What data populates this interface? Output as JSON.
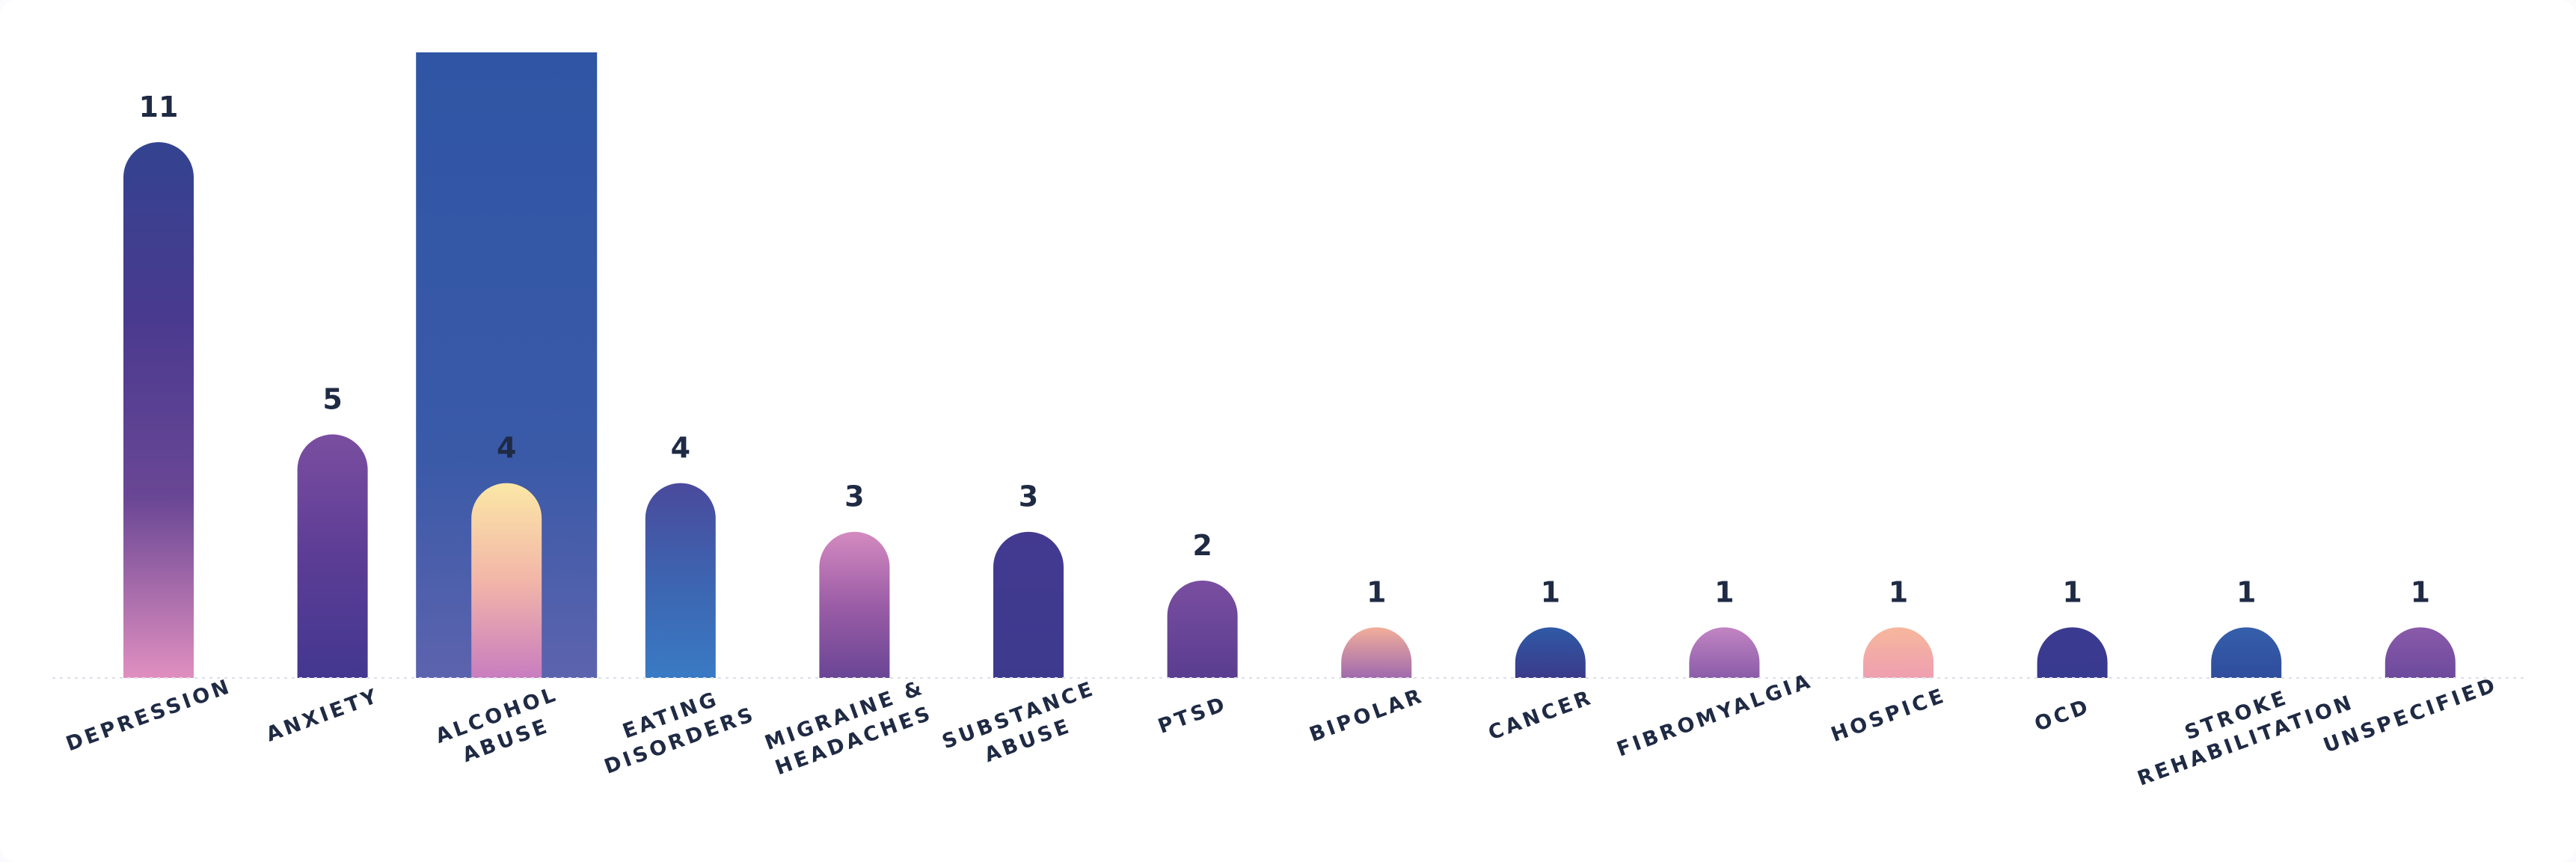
{
  "chart_data": {
    "type": "bar",
    "categories": [
      "DEPRESSION",
      "ANXIETY",
      "ALCOHOL ABUSE",
      "EATING DISORDERS",
      "MIGRAINE & HEADACHES",
      "SUBSTANCE ABUSE",
      "PTSD",
      "BIPOLAR",
      "CANCER",
      "FIBROMYALGIA",
      "HOSPICE",
      "OCD",
      "STROKE REHABILITATION",
      "UNSPECIFIED"
    ],
    "values": [
      11,
      5,
      4,
      4,
      3,
      3,
      2,
      1,
      1,
      1,
      1,
      1,
      1,
      1
    ],
    "highlighted_category": "ALCOHOL ABUSE",
    "highlight_color": "#2f55a4",
    "gridlines": false,
    "bar_gradients": [
      [
        "#33438f",
        "#4a3a8f",
        "#6a4795",
        "#e08fbf"
      ],
      [
        "#7a4ea0",
        "#5c3d95",
        "#433790"
      ],
      [
        "#fbe7a6",
        "#f2b6a8",
        "#c87dbf"
      ],
      [
        "#4a4a9c",
        "#3d64b0",
        "#3a7ac4"
      ],
      [
        "#d48ac0",
        "#9b5da6",
        "#6a4595"
      ],
      [
        "#433a90",
        "#3d3a8e"
      ],
      [
        "#7a4ea0",
        "#5a3d90"
      ],
      [
        "#f2ae9a",
        "#a06aae"
      ],
      [
        "#2f5aa6",
        "#3a3a8a"
      ],
      [
        "#c285c3",
        "#8a5ca8"
      ],
      [
        "#f7b79c",
        "#ee9fb0"
      ],
      [
        "#3a3a90",
        "#383a90"
      ],
      [
        "#355fab",
        "#2f4d9c"
      ],
      [
        "#8a5aaa",
        "#6c4a9c"
      ]
    ]
  }
}
